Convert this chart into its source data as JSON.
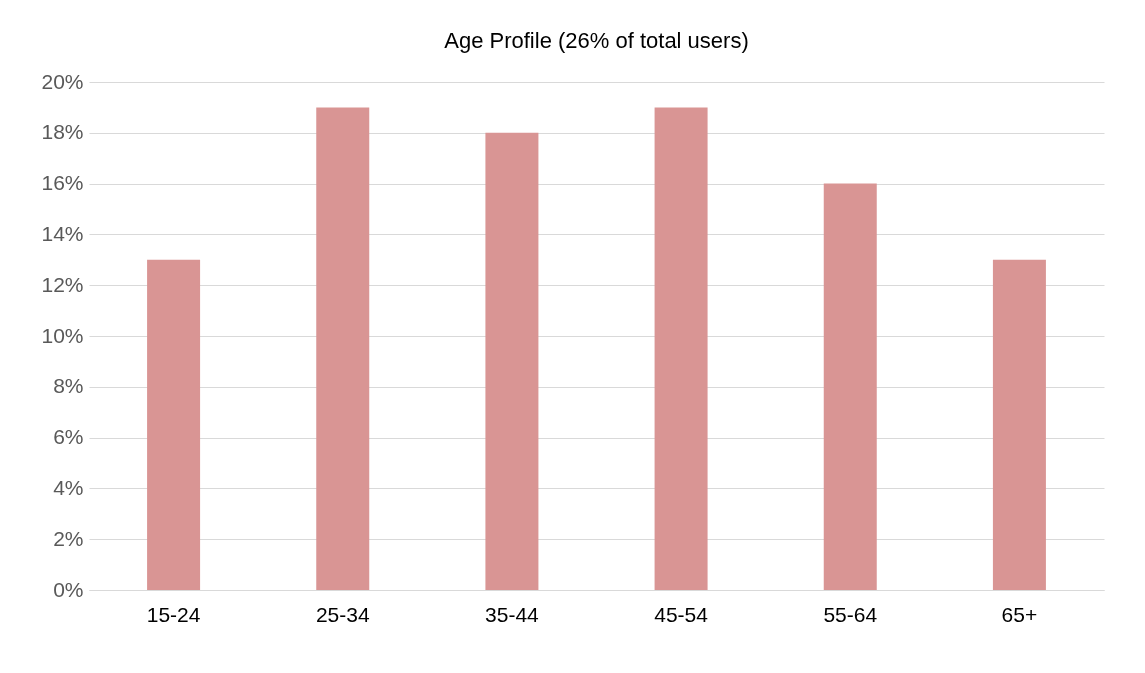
{
  "chart_data": {
    "type": "bar",
    "title": "Age Profile (26% of total users)",
    "categories": [
      "15-24",
      "25-34",
      "35-44",
      "45-54",
      "55-64",
      "65+"
    ],
    "values": [
      13,
      19,
      18,
      19,
      16,
      13
    ],
    "color": "#d99594",
    "ylim": [
      0,
      20
    ],
    "yticks": [
      {
        "value": 0,
        "label": "0%"
      },
      {
        "value": 2,
        "label": "2%"
      },
      {
        "value": 4,
        "label": "4%"
      },
      {
        "value": 6,
        "label": "6%"
      },
      {
        "value": 8,
        "label": "8%"
      },
      {
        "value": 10,
        "label": "10%"
      },
      {
        "value": 12,
        "label": "12%"
      },
      {
        "value": 14,
        "label": "14%"
      },
      {
        "value": 16,
        "label": "16%"
      },
      {
        "value": 18,
        "label": "18%"
      },
      {
        "value": 20,
        "label": "20%"
      }
    ],
    "grid": "y"
  }
}
